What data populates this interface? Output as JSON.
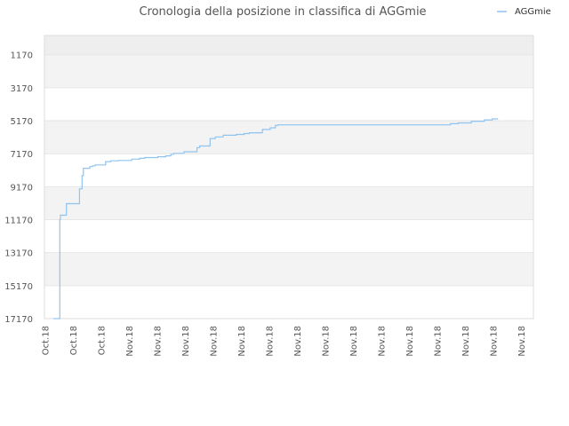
{
  "chart_data": {
    "type": "line",
    "title": "Cronologia della posizione in classifica di AGGmie",
    "xlabel": "",
    "ylabel": "",
    "legend_position": "top-right",
    "y_axis_reversed": true,
    "ylim": [
      17170,
      0
    ],
    "y_ticks": [
      "1170",
      "3170",
      "5170",
      "7170",
      "9170",
      "11170",
      "13170",
      "15170",
      "17170"
    ],
    "x_ticks": [
      "Oct.18",
      "Oct.18",
      "Oct.18",
      "Nov.18",
      "Nov.18",
      "Nov.18",
      "Nov.18",
      "Nov.18",
      "Nov.18",
      "Nov.18",
      "Nov.18",
      "Nov.18",
      "Nov.18",
      "Nov.18",
      "Nov.18",
      "Nov.18",
      "Nov.18",
      "Nov.18"
    ],
    "grid": true,
    "series": [
      {
        "name": "AGGmie",
        "color": "#90c4f0",
        "x": [
          0.0,
          0.25,
          0.27,
          0.5,
          1.0,
          1.1,
          1.15,
          1.4,
          1.5,
          1.6,
          2.0,
          2.2,
          2.5,
          3.0,
          3.3,
          3.5,
          4.0,
          4.3,
          4.5,
          4.6,
          5.0,
          5.5,
          5.6,
          6.0,
          6.2,
          6.5,
          7.0,
          7.3,
          7.5,
          8.0,
          8.3,
          8.5,
          8.6,
          9.0,
          9.6,
          10.0,
          11.0,
          12.0,
          13.0,
          14.0,
          15.0,
          15.2,
          15.5,
          16.0,
          16.5,
          16.8,
          17.0
        ],
        "y": [
          17170,
          11170,
          10900,
          10200,
          9300,
          8500,
          8050,
          7950,
          7900,
          7850,
          7650,
          7600,
          7580,
          7500,
          7450,
          7400,
          7350,
          7300,
          7200,
          7150,
          7050,
          6800,
          6700,
          6250,
          6150,
          6050,
          6000,
          5950,
          5900,
          5700,
          5600,
          5450,
          5420,
          5420,
          5420,
          5420,
          5420,
          5420,
          5420,
          5420,
          5420,
          5350,
          5300,
          5200,
          5120,
          5060,
          5020
        ]
      }
    ]
  }
}
